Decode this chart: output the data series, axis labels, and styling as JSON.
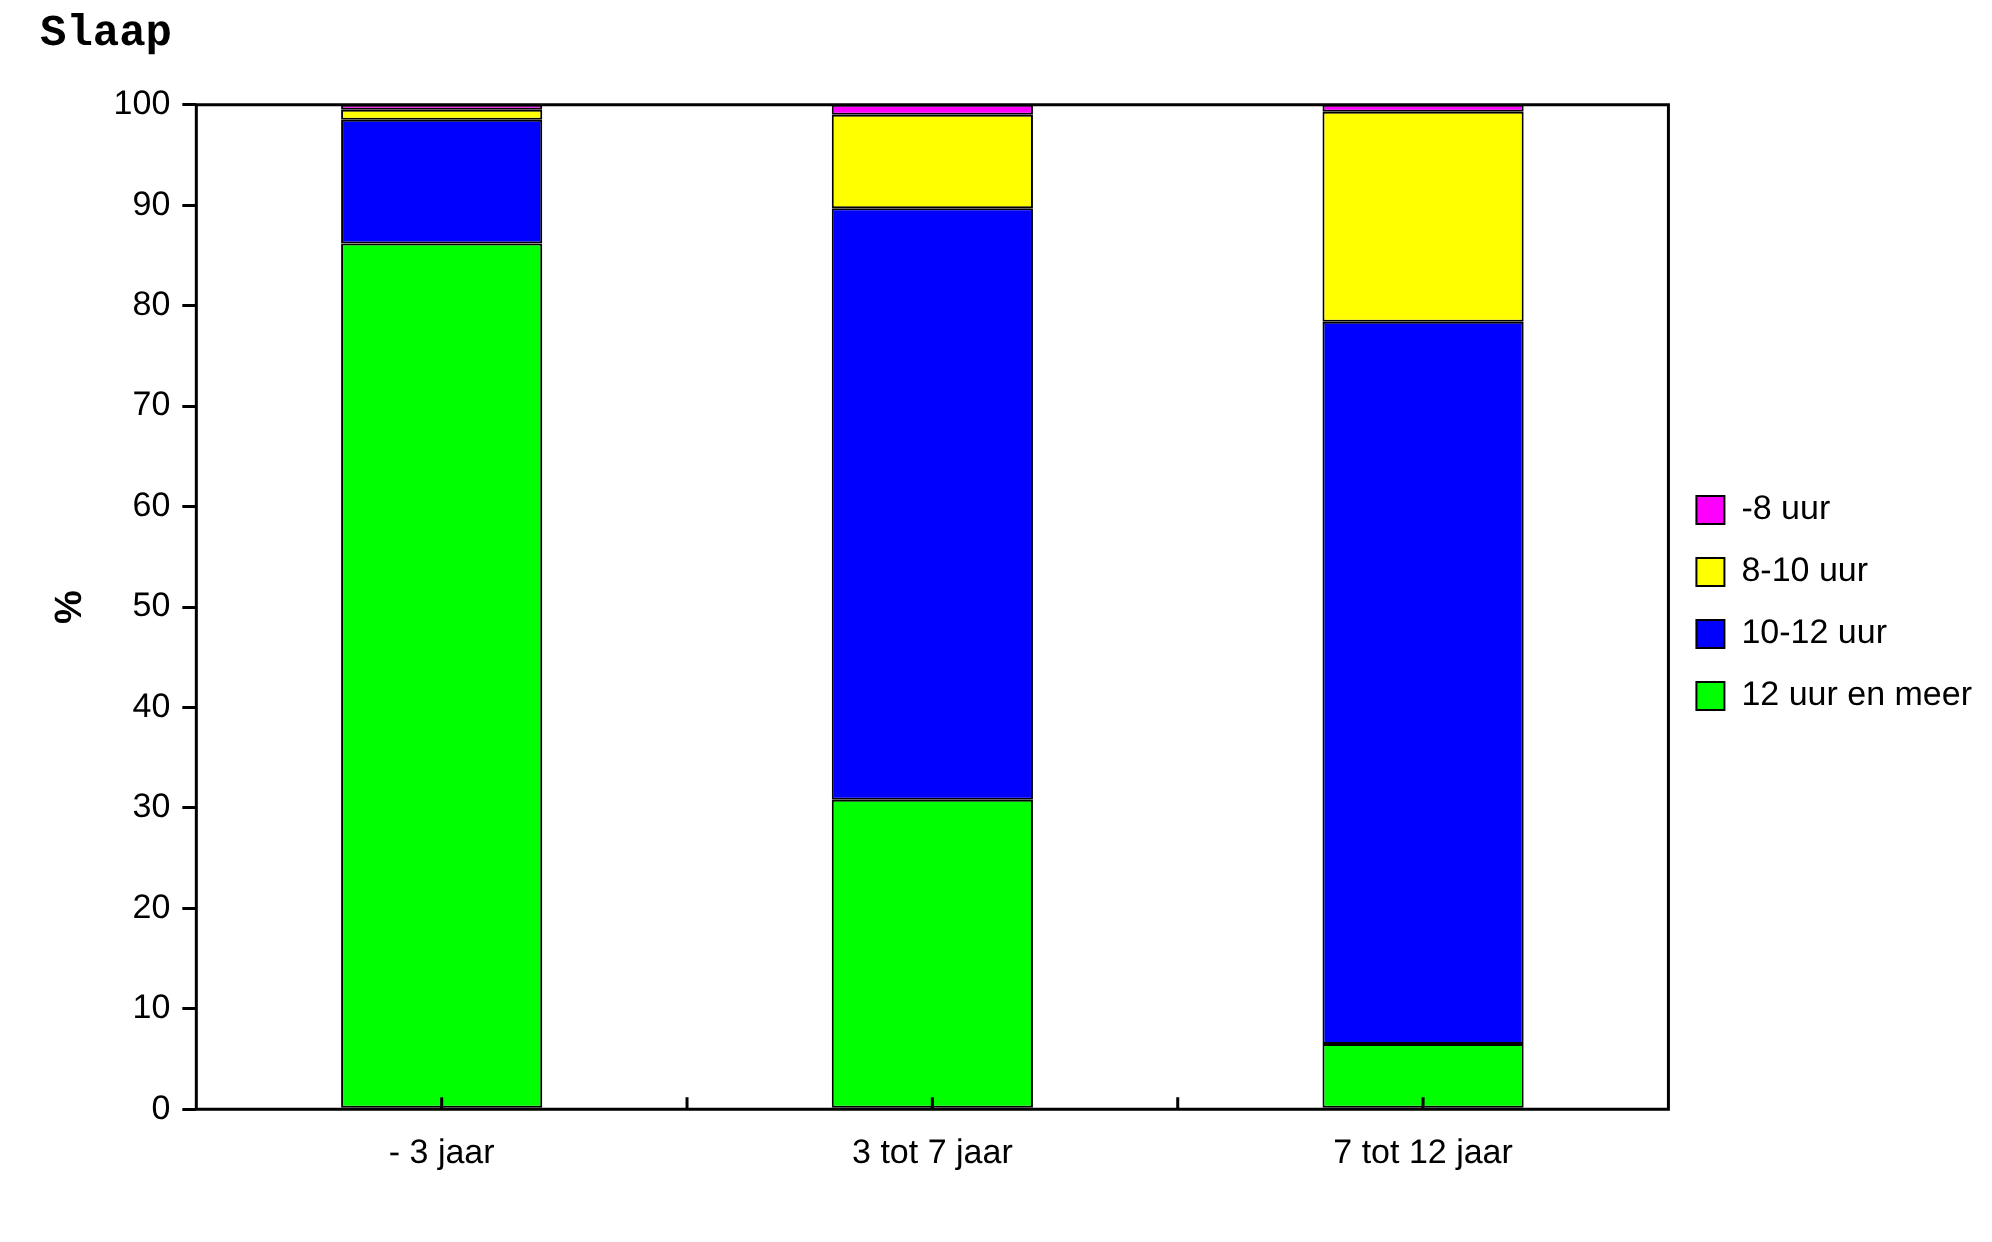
{
  "chart_data": {
    "type": "bar",
    "title": "Slaap",
    "ylabel": "%",
    "categories": [
      "- 3 jaar",
      "3 tot 7 jaar",
      "7 tot 12 jaar"
    ],
    "stacked": true,
    "ylim": [
      0,
      100
    ],
    "yticks": [
      0,
      10,
      20,
      30,
      40,
      50,
      60,
      70,
      80,
      90,
      100
    ],
    "grid": false,
    "legend": "right",
    "series": [
      {
        "name": "12 uur en meer",
        "color": "#00ff00",
        "values": [
          86.2,
          30.8,
          6.5
        ]
      },
      {
        "name": "10-12 uur",
        "color": "#0000ff",
        "values": [
          12.3,
          58.9,
          71.9
        ]
      },
      {
        "name": "8-10 uur",
        "color": "#ffff00",
        "values": [
          1.0,
          9.3,
          20.9
        ]
      },
      {
        "name": "-8 uur",
        "color": "#ff00ff",
        "values": [
          0.5,
          1.0,
          0.7
        ]
      }
    ]
  }
}
